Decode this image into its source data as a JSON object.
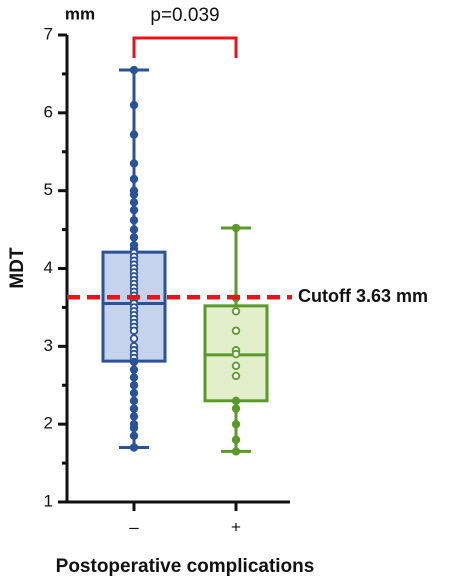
{
  "chart_data": {
    "type": "box",
    "y_label": "MDT",
    "y_unit": "mm",
    "x_label": "Postoperative complications",
    "ylim": [
      1,
      7
    ],
    "yticks": [
      1,
      2,
      3,
      4,
      5,
      6,
      7
    ],
    "minor_yticks": [
      1.5,
      2.5,
      3.5,
      4.5,
      5.5,
      6.5
    ],
    "categories": [
      "–",
      "+"
    ],
    "series": [
      {
        "color": "#2a5297",
        "fill": "#c5d3ec",
        "min": 1.7,
        "q1": 2.81,
        "median": 3.55,
        "q3": 4.21,
        "max": 6.55,
        "points": [
          6.55,
          6.1,
          5.72,
          5.35,
          5.15,
          5.0,
          4.95,
          4.85,
          4.75,
          4.62,
          4.5,
          4.4,
          4.3,
          4.25,
          4.2,
          4.15,
          4.1,
          4.05,
          4.0,
          3.95,
          3.9,
          3.85,
          3.8,
          3.75,
          3.7,
          3.65,
          3.6,
          3.55,
          3.5,
          3.45,
          3.4,
          3.35,
          3.3,
          3.25,
          3.2,
          3.1,
          3.0,
          2.95,
          2.9,
          2.85,
          2.8,
          2.7,
          2.6,
          2.5,
          2.4,
          2.3,
          2.2,
          2.1,
          2.0,
          1.95,
          1.85,
          1.7
        ]
      },
      {
        "color": "#5a9a2a",
        "fill": "#e3efcb",
        "min": 1.65,
        "q1": 2.3,
        "median": 2.89,
        "q3": 3.52,
        "max": 4.52,
        "points": [
          4.52,
          3.62,
          3.45,
          3.2,
          2.95,
          2.9,
          2.75,
          2.62,
          2.3,
          2.2,
          2.0,
          1.8,
          1.65
        ]
      }
    ],
    "reference_line": {
      "value": 3.63,
      "label": "Cutoff 3.63 mm",
      "color": "#e8141a"
    },
    "annotation": {
      "text": "p=0.039",
      "color": "#e8141a"
    }
  }
}
